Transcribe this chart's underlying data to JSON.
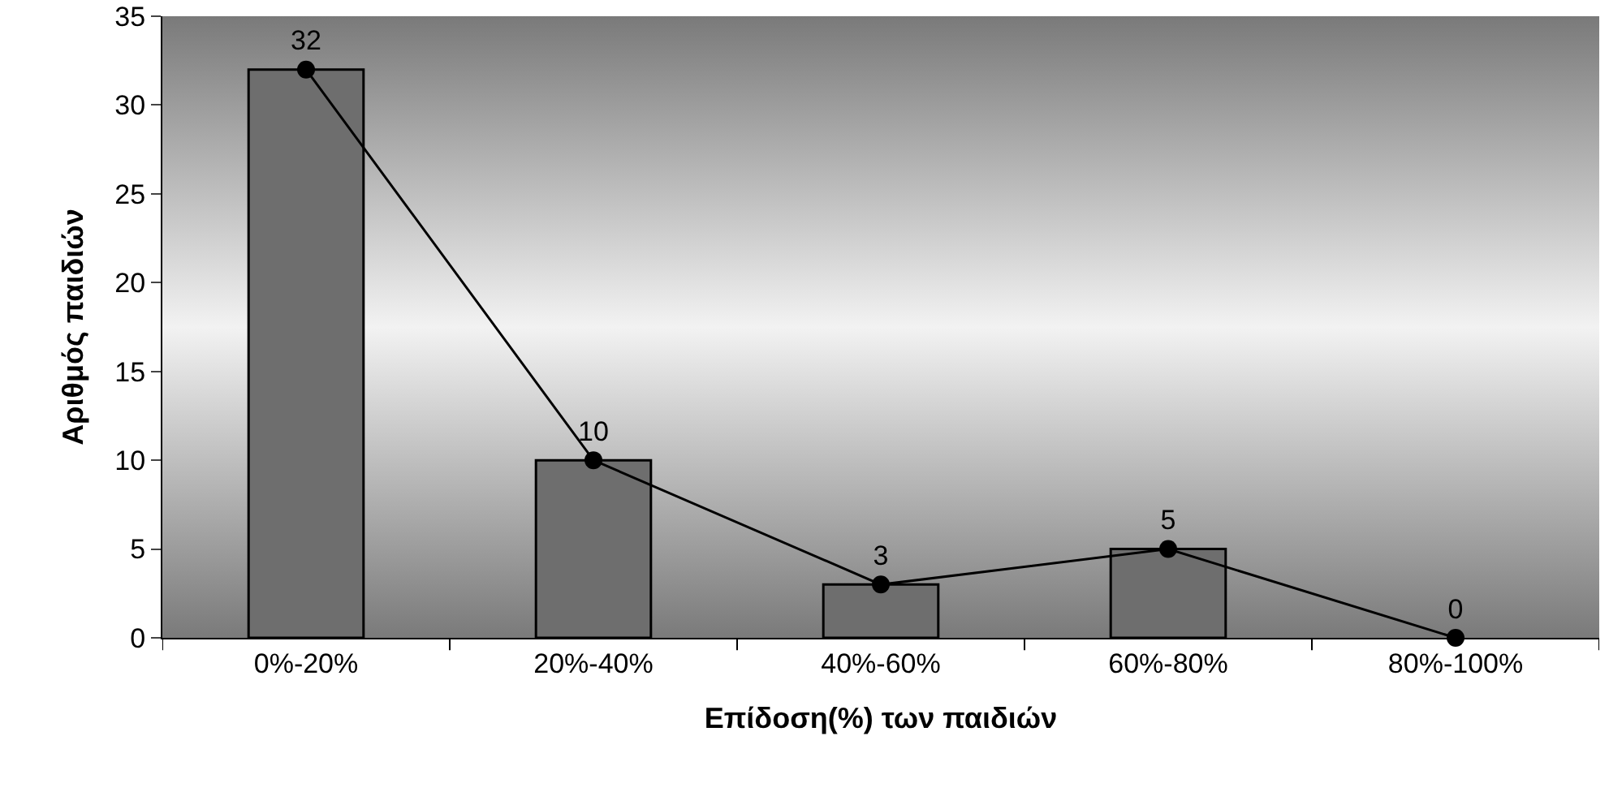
{
  "chart_data": {
    "type": "bar",
    "xlabel": "Επίδοση(%) των παιδιών",
    "ylabel": "Αριθμός παιδιών",
    "categories": [
      "0%-20%",
      "20%-40%",
      "40%-60%",
      "60%-80%",
      "80%-100%"
    ],
    "series": [
      {
        "type": "bar",
        "color": "#6e6e6e",
        "values": [
          32,
          10,
          3,
          5,
          0
        ]
      },
      {
        "type": "line",
        "color": "#000000",
        "values": [
          32,
          10,
          3,
          5,
          0
        ],
        "value_labels": [
          "32",
          "10",
          "3",
          "5",
          "0"
        ]
      }
    ],
    "ylim": [
      0,
      35
    ],
    "yticks": [
      0,
      5,
      10,
      15,
      20,
      25,
      30,
      35
    ],
    "grid": false,
    "marker": "circle",
    "line_style": "solid"
  }
}
